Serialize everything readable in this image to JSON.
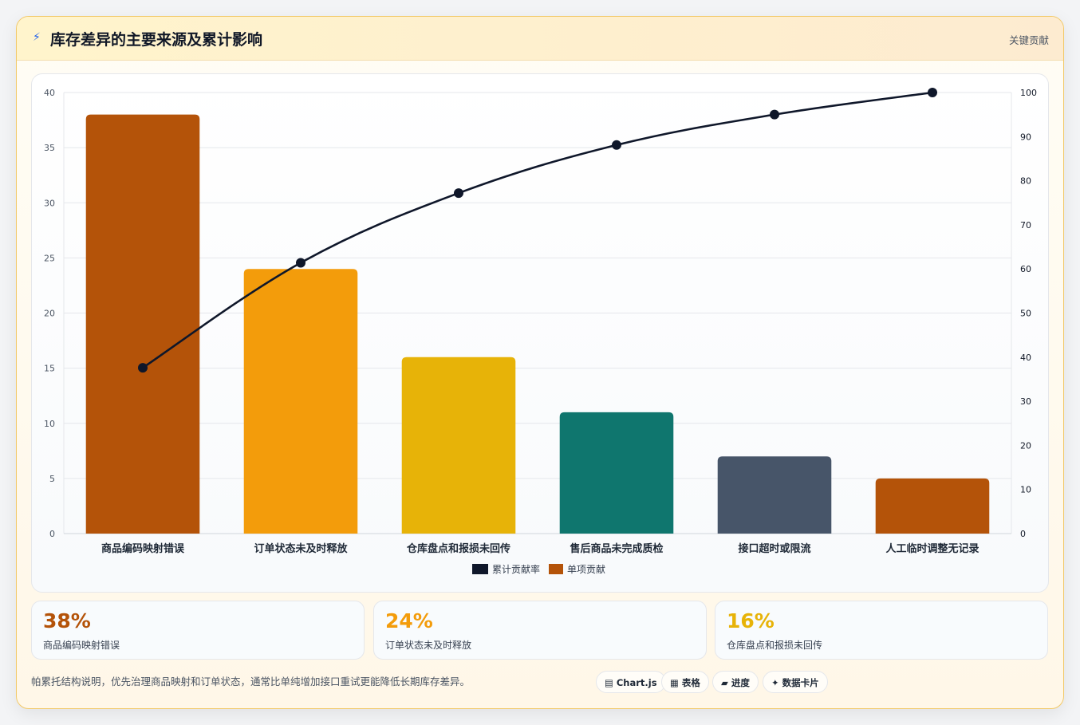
{
  "header": {
    "icon": "lightning-icon",
    "title": "库存差异的主要来源及累计影响",
    "badge": "关键贡献"
  },
  "colors": {
    "bars": [
      "#b45309",
      "#f39c0b",
      "#e7b308",
      "#0f766e",
      "#475569",
      "#b45309"
    ],
    "line": "#0f172a",
    "stat_values": [
      "#b45309",
      "#f39c0b",
      "#e7b308"
    ]
  },
  "chart_data": {
    "type": "bar",
    "categories": [
      "商品编码映射错误",
      "订单状态未及时释放",
      "仓库盘点和报损未回传",
      "售后商品未完成质检",
      "接口超时或限流",
      "人工临时调整无记录"
    ],
    "series": [
      {
        "name": "单项贡献",
        "type": "bar",
        "axis": "left",
        "values": [
          38,
          24,
          16,
          11,
          7,
          5
        ]
      },
      {
        "name": "累计贡献率",
        "type": "line",
        "axis": "right",
        "values": [
          37.6,
          61.4,
          77.2,
          88.1,
          95.0,
          100
        ]
      }
    ],
    "legend": {
      "placement": "bottom-center",
      "order": [
        "累计贡献率",
        "单项贡献"
      ]
    },
    "ylim": [
      0,
      40
    ],
    "yticks": [
      0,
      5,
      10,
      15,
      20,
      25,
      30,
      35,
      40
    ],
    "y2lim": [
      0,
      100
    ],
    "y2ticks": [
      0,
      10,
      20,
      30,
      40,
      50,
      60,
      70,
      80,
      90,
      100
    ],
    "grid": true
  },
  "stats": [
    {
      "value": "38%",
      "label": "商品编码映射错误"
    },
    {
      "value": "24%",
      "label": "订单状态未及时释放"
    },
    {
      "value": "16%",
      "label": "仓库盘点和报损未回传"
    }
  ],
  "footnote": "帕累托结构说明，优先治理商品映射和订单状态，通常比单纯增加接口重试更能降低长期库存差异。",
  "pills": [
    {
      "icon": "chart-icon",
      "label": "▤ Chart.js"
    },
    {
      "icon": "table-icon",
      "label": "▦ 表格"
    },
    {
      "icon": "progress-icon",
      "label": "▰ 进度"
    },
    {
      "icon": "data-card-icon",
      "label": "✦ 数据卡片"
    }
  ]
}
